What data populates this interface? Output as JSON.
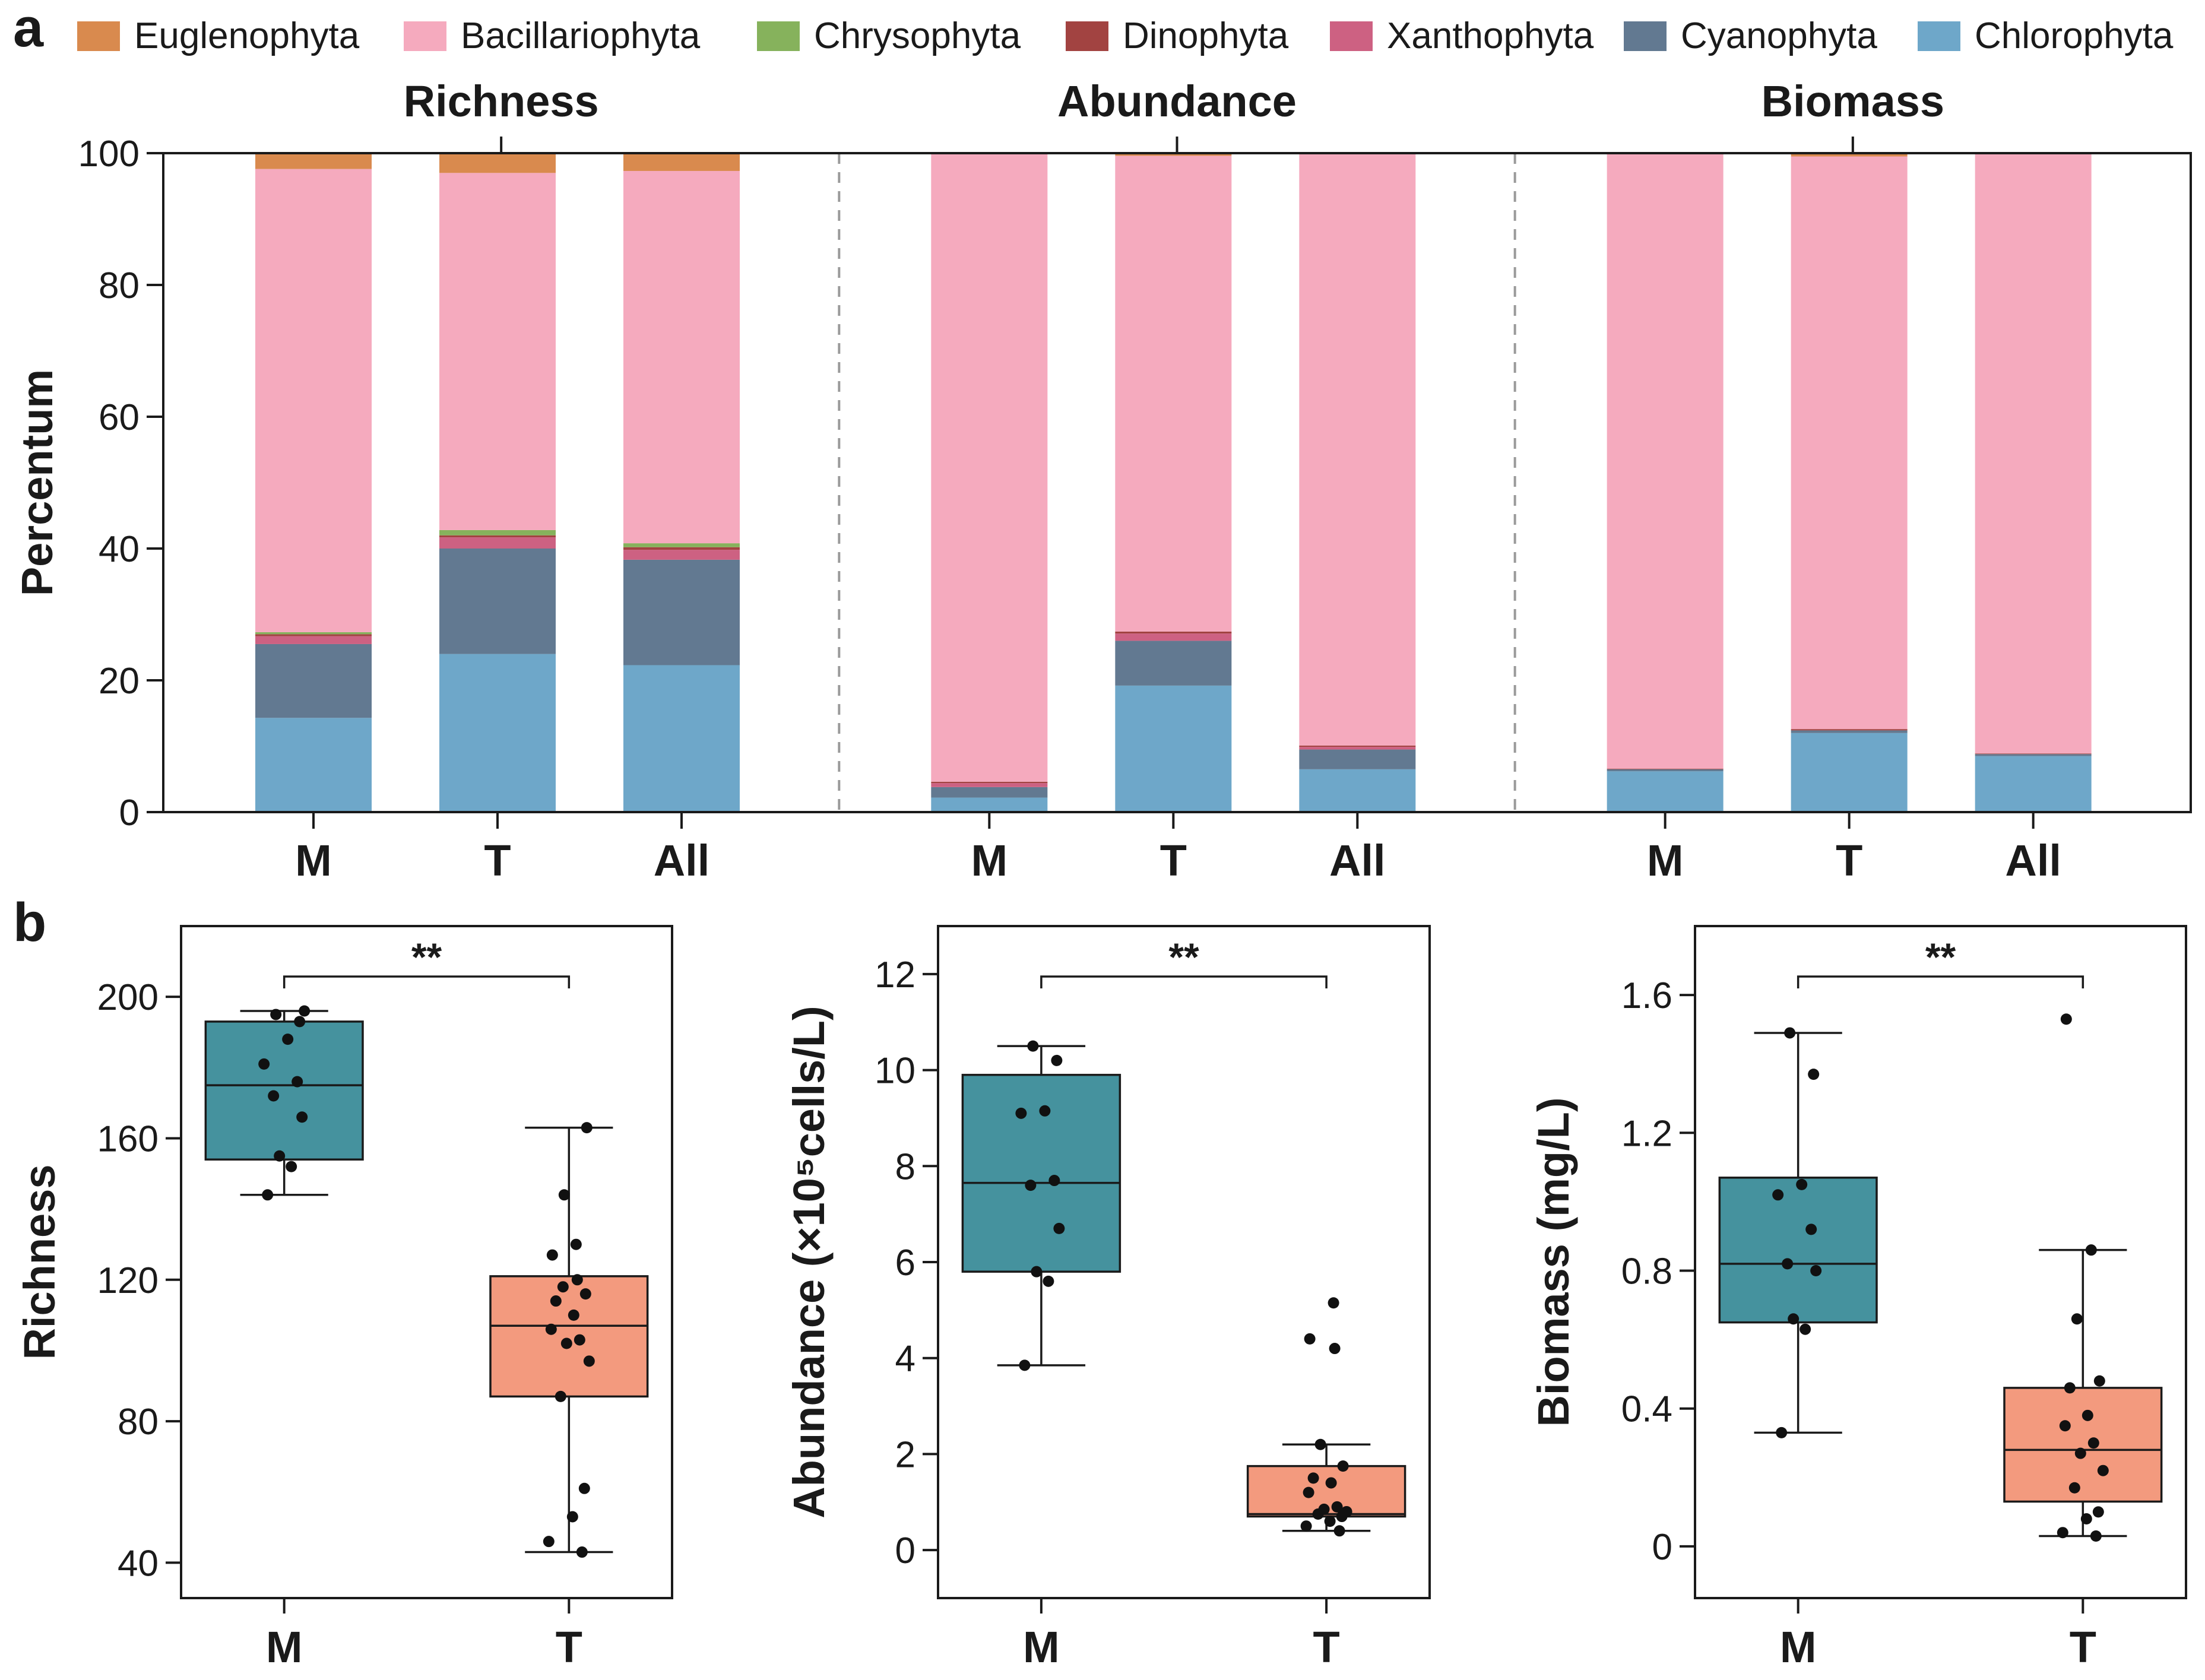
{
  "colors": {
    "Euglenophyta": "#d98a4e",
    "Bacillariophyta": "#f5aabe",
    "Chrysophyta": "#86b25c",
    "Dinophyta": "#a24341",
    "Xanthophyta": "#cd6182",
    "Cyanophyta": "#627991",
    "Chlorophyta": "#6ea7c9",
    "box_M": "#45929e",
    "box_T": "#f39a7e"
  },
  "chart_data": [
    {
      "panel": "a",
      "type": "bar",
      "stacked": true,
      "ylabel": "Percentum",
      "ylim": [
        0,
        100
      ],
      "yticks": [
        0,
        20,
        40,
        60,
        80,
        100
      ],
      "legend": [
        "Euglenophyta",
        "Bacillariophyta",
        "Chrysophyta",
        "Dinophyta",
        "Xanthophyta",
        "Cyanophyta",
        "Chlorophyta"
      ],
      "stack_order_bottom_to_top": [
        "Chlorophyta",
        "Cyanophyta",
        "Xanthophyta",
        "Dinophyta",
        "Chrysophyta",
        "Bacillariophyta",
        "Euglenophyta"
      ],
      "groups": [
        {
          "title": "Richness",
          "categories": [
            "M",
            "T",
            "All"
          ],
          "series": [
            {
              "name": "Chlorophyta",
              "values": [
                14.3,
                24.0,
                22.3
              ]
            },
            {
              "name": "Cyanophyta",
              "values": [
                11.2,
                16.0,
                16.0
              ]
            },
            {
              "name": "Xanthophyta",
              "values": [
                1.2,
                1.7,
                1.5
              ]
            },
            {
              "name": "Dinophyta",
              "values": [
                0.3,
                0.3,
                0.4
              ]
            },
            {
              "name": "Chrysophyta",
              "values": [
                0.3,
                0.8,
                0.6
              ]
            },
            {
              "name": "Bacillariophyta",
              "values": [
                70.3,
                54.2,
                56.5
              ]
            },
            {
              "name": "Euglenophyta",
              "values": [
                2.4,
                3.0,
                2.7
              ]
            }
          ]
        },
        {
          "title": "Abundance",
          "categories": [
            "M",
            "T",
            "All"
          ],
          "series": [
            {
              "name": "Chlorophyta",
              "values": [
                2.2,
                19.2,
                6.5
              ]
            },
            {
              "name": "Cyanophyta",
              "values": [
                1.6,
                6.8,
                3.0
              ]
            },
            {
              "name": "Xanthophyta",
              "values": [
                0.6,
                1.1,
                0.4
              ]
            },
            {
              "name": "Dinophyta",
              "values": [
                0.2,
                0.3,
                0.2
              ]
            },
            {
              "name": "Chrysophyta",
              "values": [
                0.0,
                0.0,
                0.0
              ]
            },
            {
              "name": "Bacillariophyta",
              "values": [
                95.3,
                72.2,
                89.8
              ]
            },
            {
              "name": "Euglenophyta",
              "values": [
                0.1,
                0.4,
                0.1
              ]
            }
          ]
        },
        {
          "title": "Biomass",
          "categories": [
            "M",
            "T",
            "All"
          ],
          "series": [
            {
              "name": "Chlorophyta",
              "values": [
                6.2,
                12.0,
                8.5
              ]
            },
            {
              "name": "Cyanophyta",
              "values": [
                0.3,
                0.4,
                0.3
              ]
            },
            {
              "name": "Xanthophyta",
              "values": [
                0.0,
                0.0,
                0.0
              ]
            },
            {
              "name": "Dinophyta",
              "values": [
                0.1,
                0.2,
                0.1
              ]
            },
            {
              "name": "Chrysophyta",
              "values": [
                0.0,
                0.0,
                0.0
              ]
            },
            {
              "name": "Bacillariophyta",
              "values": [
                93.3,
                86.9,
                91.0
              ]
            },
            {
              "name": "Euglenophyta",
              "values": [
                0.1,
                0.5,
                0.1
              ]
            }
          ]
        }
      ]
    },
    {
      "panel": "b",
      "type": "box",
      "ylabel": "Richness",
      "ylim": [
        30,
        220
      ],
      "yticks": [
        40,
        80,
        120,
        160,
        200
      ],
      "significance": "**",
      "categories": [
        "M",
        "T"
      ],
      "boxes": [
        {
          "name": "M",
          "min": 144,
          "q1": 154,
          "median": 175,
          "q3": 193,
          "max": 196,
          "points": [
            144,
            152,
            155,
            166,
            172,
            176,
            181,
            188,
            193,
            195,
            196
          ]
        },
        {
          "name": "T",
          "min": 43,
          "q1": 87,
          "median": 107,
          "q3": 121,
          "max": 163,
          "points": [
            43,
            46,
            53,
            61,
            87,
            97,
            102,
            103,
            106,
            110,
            114,
            116,
            118,
            120,
            127,
            130,
            144,
            163
          ]
        }
      ]
    },
    {
      "panel": "b",
      "type": "box",
      "ylabel": "Abundance (×10⁵cells/L)",
      "ylim": [
        -1,
        13
      ],
      "yticks": [
        0,
        2,
        4,
        6,
        8,
        10,
        12
      ],
      "significance": "**",
      "categories": [
        "M",
        "T"
      ],
      "boxes": [
        {
          "name": "M",
          "min": 3.85,
          "q1": 5.8,
          "median": 7.65,
          "q3": 9.9,
          "max": 10.5,
          "points": [
            3.85,
            5.6,
            5.8,
            6.7,
            7.6,
            7.7,
            9.1,
            9.15,
            10.2,
            10.5
          ]
        },
        {
          "name": "T",
          "min": 0.4,
          "q1": 0.7,
          "median": 0.75,
          "q3": 1.75,
          "max": 2.2,
          "points": [
            0.4,
            0.5,
            0.6,
            0.7,
            0.75,
            0.8,
            0.85,
            0.9,
            1.2,
            1.4,
            1.5,
            1.75,
            2.2,
            4.2,
            4.4,
            5.15
          ]
        }
      ]
    },
    {
      "panel": "b",
      "type": "box",
      "ylabel": "Biomass (mg/L)",
      "ylim": [
        -0.15,
        1.8
      ],
      "yticks": [
        0,
        0.4,
        0.8,
        1.2,
        1.6
      ],
      "yticklabels": [
        "0",
        "0.4",
        "0.8",
        "1.2",
        "1.6"
      ],
      "significance": "**",
      "categories": [
        "M",
        "T"
      ],
      "boxes": [
        {
          "name": "M",
          "min": 0.33,
          "q1": 0.65,
          "median": 0.82,
          "q3": 1.07,
          "max": 1.49,
          "points": [
            0.33,
            0.63,
            0.66,
            0.8,
            0.82,
            0.92,
            1.02,
            1.05,
            1.37,
            1.49
          ]
        },
        {
          "name": "T",
          "min": 0.03,
          "q1": 0.13,
          "median": 0.28,
          "q3": 0.46,
          "max": 0.86,
          "points": [
            0.03,
            0.04,
            0.08,
            0.1,
            0.17,
            0.22,
            0.27,
            0.3,
            0.35,
            0.38,
            0.46,
            0.48,
            0.66,
            0.86,
            1.53
          ]
        }
      ]
    }
  ]
}
